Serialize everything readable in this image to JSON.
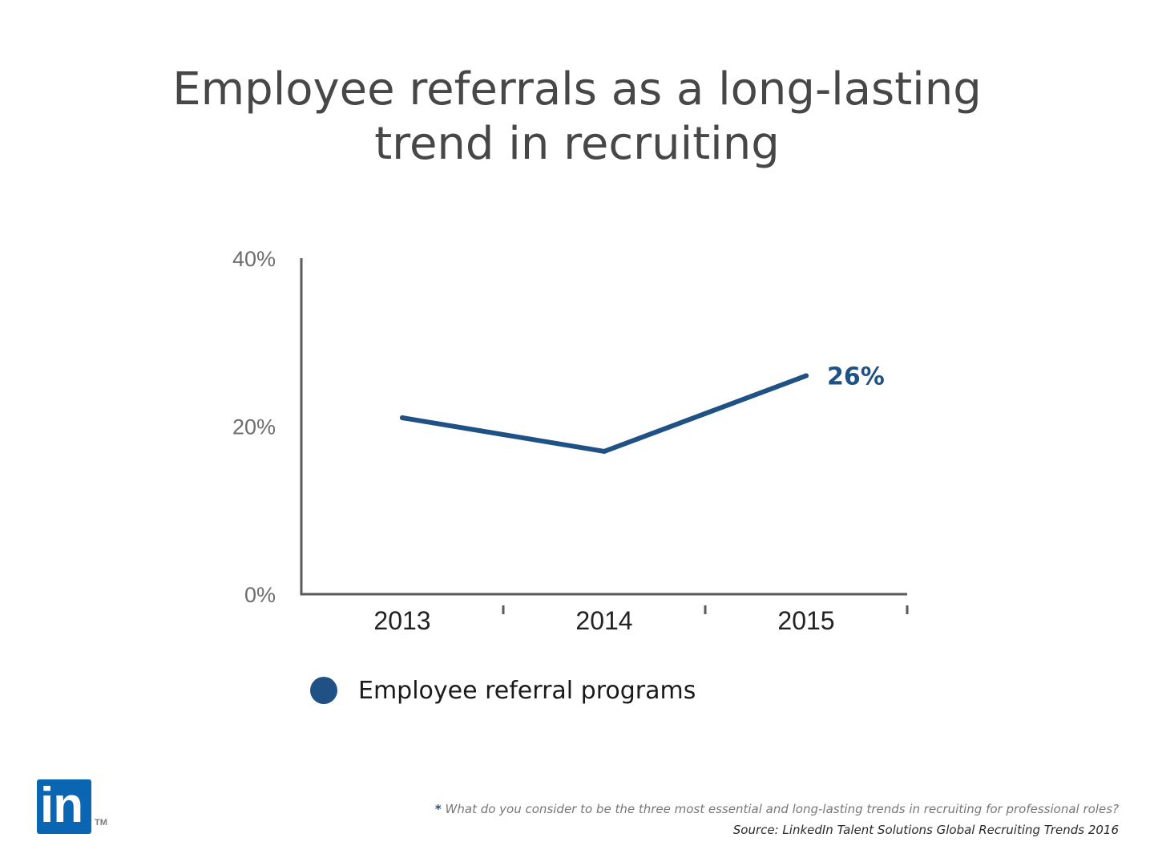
{
  "title_lines": [
    "Employee referrals as a long-lasting",
    "trend in recruiting"
  ],
  "colors": {
    "series": "#1f5185",
    "axis": "#5a5a5a",
    "title": "#474747",
    "logo": "#0a66b2"
  },
  "chart_data": {
    "type": "line",
    "x": [
      "2013",
      "2014",
      "2015"
    ],
    "series": [
      {
        "name": "Employee referral programs",
        "values": [
          21,
          17,
          26
        ]
      }
    ],
    "ylim": [
      0,
      40
    ],
    "yticks": [
      0,
      20,
      40
    ],
    "ytick_labels": [
      "0%",
      "20%",
      "40%"
    ],
    "end_label": "26%",
    "grid": false,
    "legend_position": "bottom-left"
  },
  "legend": {
    "label": "Employee referral programs"
  },
  "logo": {
    "text": "in",
    "tm": "TM"
  },
  "footnote": {
    "marker": "*",
    "text": " What do you consider to be the three most essential and long-lasting trends in recruiting for professional roles?"
  },
  "source": "Source: LinkedIn Talent Solutions Global Recruiting Trends 2016"
}
